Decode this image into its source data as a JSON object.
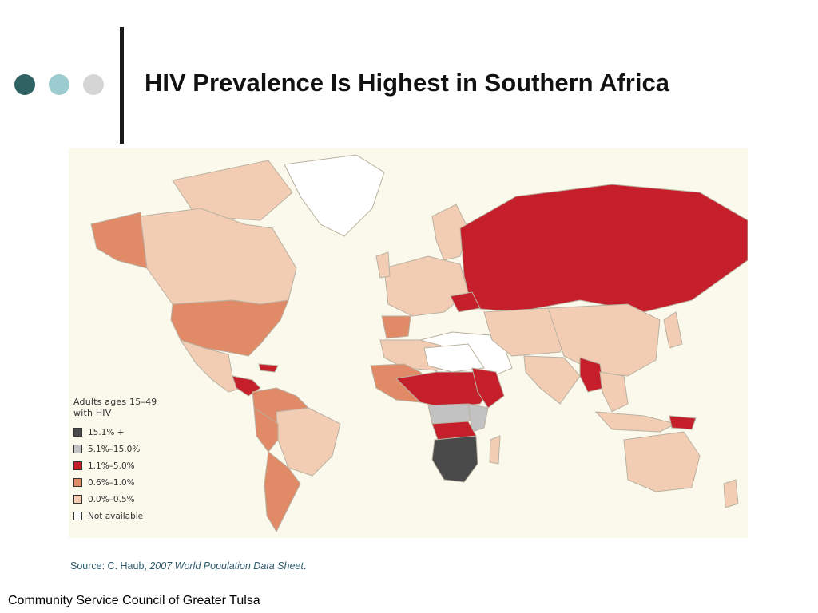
{
  "slide": {
    "title": "HIV Prevalence Is Highest in Southern Africa",
    "bullet_colors": [
      "#2f6263",
      "#9ccccf",
      "#d5d5d5"
    ],
    "footer": "Community Service Council of Greater Tulsa"
  },
  "source": {
    "prefix": "Source:  C. Haub, ",
    "publication": "2007 World Population Data Sheet",
    "suffix": "."
  },
  "map": {
    "legend": {
      "title": "Adults ages 15–49 with HIV",
      "items": [
        {
          "label": "15.1% +",
          "color": "#4a4a4a"
        },
        {
          "label": "5.1%–15.0%",
          "color": "#c2c2c2"
        },
        {
          "label": "1.1%–5.0%",
          "color": "#c41f2a"
        },
        {
          "label": "0.6%–1.0%",
          "color": "#e08a68"
        },
        {
          "label": "0.0%–0.5%",
          "color": "#f2cdb4"
        },
        {
          "label": "Not available",
          "color": "#ffffff"
        }
      ]
    }
  }
}
